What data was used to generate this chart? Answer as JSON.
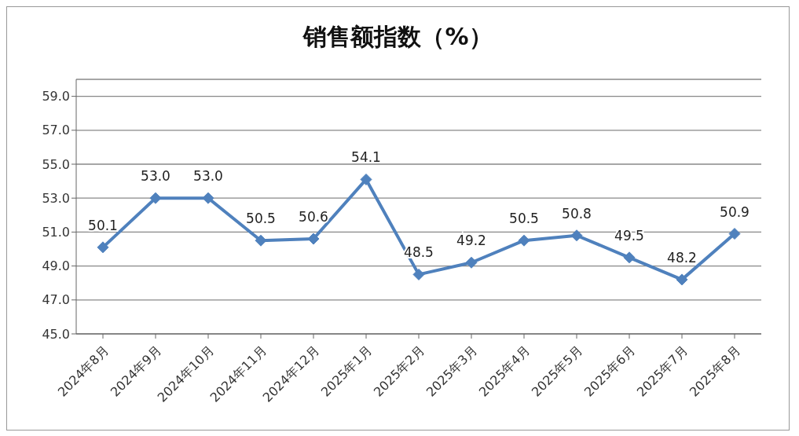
{
  "chart_data": {
    "type": "line",
    "title": "销售额指数（%）",
    "categories": [
      "2024年8月",
      "2024年9月",
      "2024年10月",
      "2024年11月",
      "2024年12月",
      "2025年1月",
      "2025年2月",
      "2025年3月",
      "2025年4月",
      "2025年5月",
      "2025年6月",
      "2025年7月",
      "2025年8月"
    ],
    "series": [
      {
        "color": "#4f81bd",
        "values": [
          50.1,
          53.0,
          53.0,
          50.5,
          50.6,
          54.1,
          48.5,
          49.2,
          50.5,
          50.8,
          49.5,
          48.2,
          50.9
        ],
        "value_labels": [
          "50.1",
          "53.0",
          "53.0",
          "50.5",
          "50.6",
          "54.1",
          "48.5",
          "49.2",
          "50.5",
          "50.8",
          "49.5",
          "48.2",
          "50.9"
        ]
      }
    ],
    "ylim": [
      45,
      60
    ],
    "yticks": [
      {
        "value": 45,
        "label": "45.0"
      },
      {
        "value": 47,
        "label": "47.0"
      },
      {
        "value": 49,
        "label": "49.0"
      },
      {
        "value": 51,
        "label": "51.0"
      },
      {
        "value": 53,
        "label": "53.0"
      },
      {
        "value": 55,
        "label": "55.0"
      },
      {
        "value": 57,
        "label": "57.0"
      },
      {
        "value": 59,
        "label": "59.0"
      }
    ],
    "grid": "y",
    "marker": "diamond",
    "line_style": "solid",
    "legend": false
  }
}
